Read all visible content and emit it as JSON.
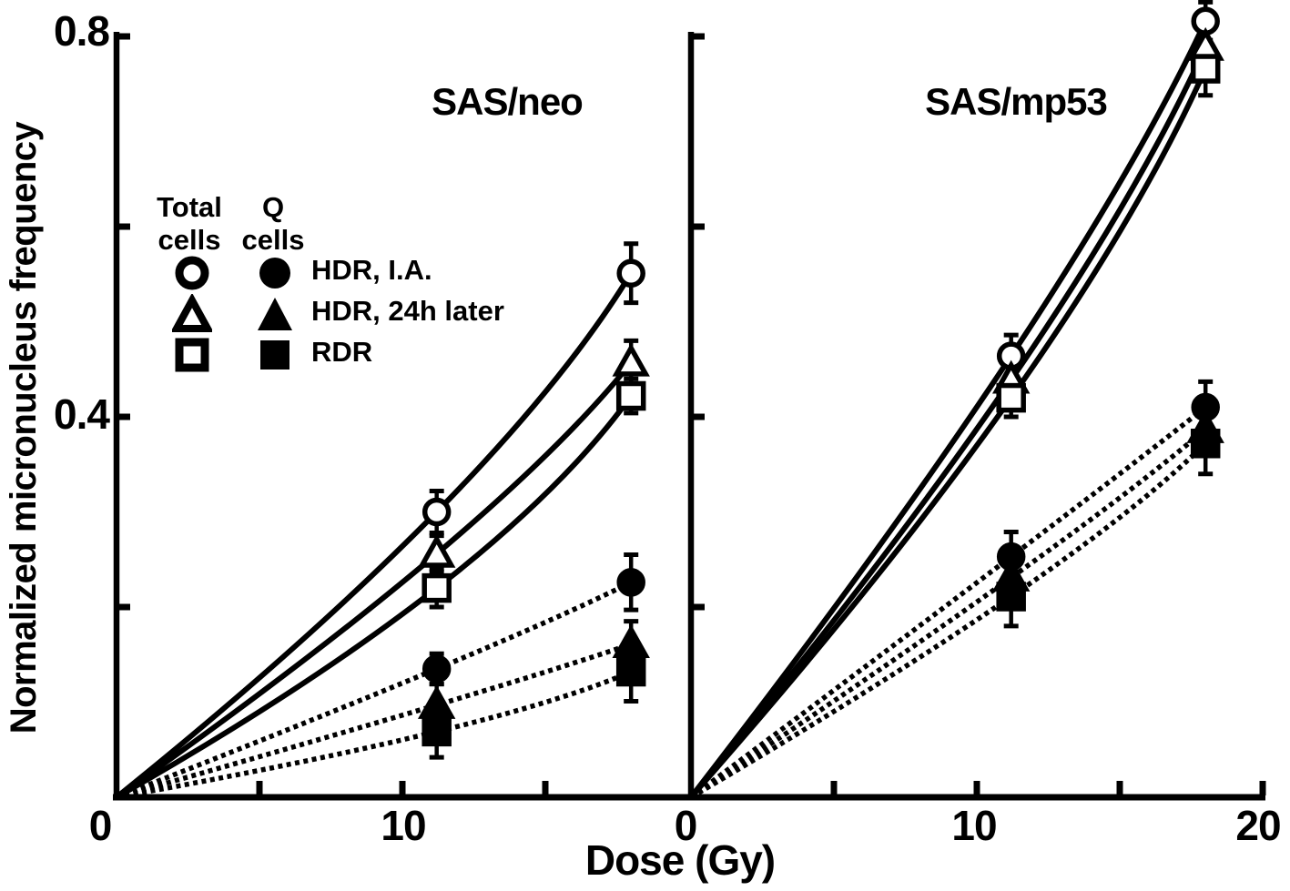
{
  "colors": {
    "ink": "#000000",
    "background": "#ffffff"
  },
  "figure": {
    "ylabel": "Normalized micronucleus frequency",
    "xlabel": "Dose (Gy)"
  },
  "legend": {
    "col1": {
      "line1": "Total",
      "line2": "cells"
    },
    "col2": {
      "line1": "Q",
      "line2": "cells"
    },
    "rows": [
      {
        "label": "HDR, I.A.",
        "marker": "circle"
      },
      {
        "label": "HDR, 24h later",
        "marker": "triangle"
      },
      {
        "label": "RDR",
        "marker": "square"
      }
    ]
  },
  "chart_data": {
    "type": "line",
    "title": "",
    "xlabel": "Dose (Gy)",
    "ylabel": "Normalized micronucleus frequency",
    "xlim": [
      0,
      20
    ],
    "ylim": [
      0,
      0.84
    ],
    "grid": false,
    "legend_position": "upper-left-inside-left-panel",
    "axes": {
      "y_tick_values": [
        0.2,
        0.4,
        0.6,
        0.8
      ],
      "y_tick_labels": [
        "0.8",
        "0.4"
      ],
      "x_tick_values_left": [
        5,
        10,
        15
      ],
      "x_tick_values_right": [
        5,
        10,
        15,
        20
      ],
      "x_tick_labels_left": [
        "0",
        "10"
      ],
      "x_tick_labels_right": [
        "0",
        "10",
        "20"
      ]
    },
    "panels": [
      {
        "key": "sas-neo",
        "title": "SAS/neo",
        "series": [
          {
            "key": "total-hdr-ia",
            "group": "Total cells",
            "condition": "HDR, I.A.",
            "marker": "circle",
            "fill": "open",
            "line": "solid",
            "x": [
              0,
              11.2,
              18
            ],
            "y": [
              0,
              0.3,
              0.551
            ],
            "yerr": [
              0,
              0.022,
              0.031
            ]
          },
          {
            "key": "total-hdr-24h",
            "group": "Total cells",
            "condition": "HDR, 24h later",
            "marker": "triangle",
            "fill": "open",
            "line": "solid",
            "x": [
              0,
              11.2,
              18
            ],
            "y": [
              0,
              0.256,
              0.457
            ],
            "yerr": [
              0,
              0.019,
              0.023
            ]
          },
          {
            "key": "total-rdr",
            "group": "Total cells",
            "condition": "RDR",
            "marker": "square",
            "fill": "open",
            "line": "solid",
            "x": [
              0,
              11.2,
              18
            ],
            "y": [
              0,
              0.22,
              0.422
            ],
            "yerr": [
              0,
              0.02,
              0.018
            ]
          },
          {
            "key": "q-hdr-ia",
            "group": "Q cells",
            "condition": "HDR, I.A.",
            "marker": "circle",
            "fill": "filled",
            "line": "dashed",
            "x": [
              0,
              11.2,
              18
            ],
            "y": [
              0,
              0.135,
              0.226
            ],
            "yerr": [
              0,
              0.016,
              0.029
            ]
          },
          {
            "key": "q-hdr-24h",
            "group": "Q cells",
            "condition": "HDR, 24h later",
            "marker": "triangle",
            "fill": "filled",
            "line": "dashed",
            "x": [
              0,
              11.2,
              18
            ],
            "y": [
              0,
              0.097,
              0.161
            ],
            "yerr": [
              0,
              0.022,
              0.024
            ]
          },
          {
            "key": "q-rdr",
            "group": "Q cells",
            "condition": "RDR",
            "marker": "square",
            "fill": "filled",
            "line": "dashed",
            "x": [
              0,
              11.2,
              18
            ],
            "y": [
              0,
              0.069,
              0.132
            ],
            "yerr": [
              0,
              0.027,
              0.031
            ]
          }
        ]
      },
      {
        "key": "sas-mp53",
        "title": "SAS/mp53",
        "series": [
          {
            "key": "total-hdr-ia",
            "group": "Total cells",
            "condition": "HDR, I.A.",
            "marker": "circle",
            "fill": "open",
            "line": "solid",
            "x": [
              0,
              11.2,
              18
            ],
            "y": [
              0,
              0.464,
              0.816
            ],
            "yerr": [
              0,
              0.022,
              0.02
            ]
          },
          {
            "key": "total-hdr-24h",
            "group": "Total cells",
            "condition": "HDR, 24h later",
            "marker": "triangle",
            "fill": "open",
            "line": "solid",
            "x": [
              0,
              11.2,
              18
            ],
            "y": [
              0,
              0.439,
              0.789
            ],
            "yerr": [
              0,
              0.018,
              0.025
            ]
          },
          {
            "key": "total-rdr",
            "group": "Total cells",
            "condition": "RDR",
            "marker": "square",
            "fill": "open",
            "line": "solid",
            "x": [
              0,
              11.2,
              18
            ],
            "y": [
              0,
              0.42,
              0.766
            ],
            "yerr": [
              0,
              0.02,
              0.028
            ]
          },
          {
            "key": "q-hdr-ia",
            "group": "Q cells",
            "condition": "HDR, I.A.",
            "marker": "circle",
            "fill": "filled",
            "line": "dashed",
            "x": [
              0,
              11.2,
              18
            ],
            "y": [
              0,
              0.253,
              0.41
            ],
            "yerr": [
              0,
              0.026,
              0.027
            ]
          },
          {
            "key": "q-hdr-24h",
            "group": "Q cells",
            "condition": "HDR, 24h later",
            "marker": "triangle",
            "fill": "filled",
            "line": "dashed",
            "x": [
              0,
              11.2,
              18
            ],
            "y": [
              0,
              0.231,
              0.387
            ],
            "yerr": [
              0,
              0.028,
              0.028
            ]
          },
          {
            "key": "q-rdr",
            "group": "Q cells",
            "condition": "RDR",
            "marker": "square",
            "fill": "filled",
            "line": "dashed",
            "x": [
              0,
              11.2,
              18
            ],
            "y": [
              0,
              0.211,
              0.372
            ],
            "yerr": [
              0,
              0.031,
              0.032
            ]
          }
        ]
      }
    ]
  }
}
